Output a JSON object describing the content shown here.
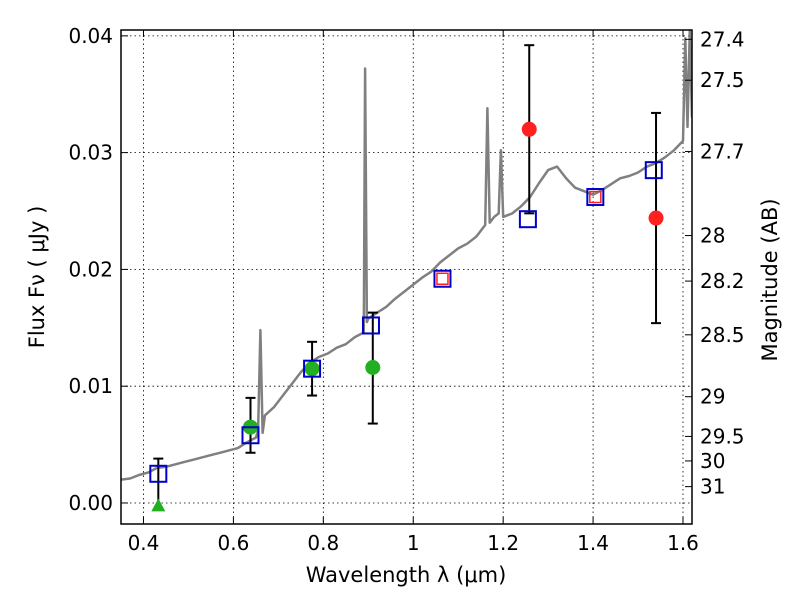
{
  "chart_data": {
    "type": "scatter",
    "title": "",
    "xlabel": "Wavelength  λ (μm)",
    "ylabel": "Flux  Fν  ( μJy )",
    "y2label": "Magnitude (AB)",
    "xlim": [
      0.35,
      1.62
    ],
    "ylim": [
      -0.0018,
      0.0405
    ],
    "grid": true,
    "x_ticks": [
      {
        "value": 0.4,
        "label": "0.4"
      },
      {
        "value": 0.6,
        "label": "0.6"
      },
      {
        "value": 0.8,
        "label": "0.8"
      },
      {
        "value": 1.0,
        "label": "1"
      },
      {
        "value": 1.2,
        "label": "1.2"
      },
      {
        "value": 1.4,
        "label": "1.4"
      },
      {
        "value": 1.6,
        "label": "1.6"
      }
    ],
    "y_ticks": [
      {
        "value": 0.0,
        "label": "0.00"
      },
      {
        "value": 0.01,
        "label": "0.01"
      },
      {
        "value": 0.02,
        "label": "0.02"
      },
      {
        "value": 0.03,
        "label": "0.03"
      },
      {
        "value": 0.04,
        "label": "0.04"
      }
    ],
    "y2_ticks": [
      {
        "flux": 0.0397,
        "label": "27.4"
      },
      {
        "flux": 0.0362,
        "label": "27.5"
      },
      {
        "flux": 0.0301,
        "label": "27.7"
      },
      {
        "flux": 0.0229,
        "label": "28"
      },
      {
        "flux": 0.019,
        "label": "28.2"
      },
      {
        "flux": 0.0144,
        "label": "28.5"
      },
      {
        "flux": 0.0091,
        "label": "29"
      },
      {
        "flux": 0.0057,
        "label": "29.5"
      },
      {
        "flux": 0.0036,
        "label": "30"
      },
      {
        "flux": 0.0014,
        "label": "31"
      }
    ],
    "series": [
      {
        "kind": "model_spectrum",
        "color": "#808080",
        "x": [
          0.35,
          0.37,
          0.39,
          0.41,
          0.43,
          0.45,
          0.47,
          0.49,
          0.51,
          0.53,
          0.55,
          0.57,
          0.59,
          0.61,
          0.63,
          0.65,
          0.655,
          0.66,
          0.665,
          0.67,
          0.69,
          0.71,
          0.73,
          0.75,
          0.77,
          0.79,
          0.81,
          0.83,
          0.85,
          0.87,
          0.89,
          0.893,
          0.897,
          0.9,
          0.92,
          0.94,
          0.96,
          0.98,
          1.0,
          1.02,
          1.04,
          1.06,
          1.08,
          1.1,
          1.12,
          1.14,
          1.16,
          1.165,
          1.17,
          1.18,
          1.19,
          1.195,
          1.2,
          1.22,
          1.24,
          1.26,
          1.28,
          1.3,
          1.32,
          1.34,
          1.36,
          1.38,
          1.4,
          1.42,
          1.44,
          1.46,
          1.48,
          1.5,
          1.52,
          1.54,
          1.56,
          1.58,
          1.6,
          1.605,
          1.61,
          1.615,
          1.62
        ],
        "y": [
          0.002,
          0.0021,
          0.0024,
          0.0026,
          0.003,
          0.0031,
          0.0033,
          0.0035,
          0.0037,
          0.0039,
          0.0041,
          0.0043,
          0.0045,
          0.0047,
          0.0052,
          0.0056,
          0.0062,
          0.0148,
          0.006,
          0.0075,
          0.0082,
          0.0092,
          0.0102,
          0.0112,
          0.012,
          0.0125,
          0.0128,
          0.0133,
          0.0136,
          0.0142,
          0.0146,
          0.0372,
          0.0155,
          0.0158,
          0.0163,
          0.0168,
          0.0175,
          0.0181,
          0.0187,
          0.0193,
          0.0198,
          0.0206,
          0.0212,
          0.0218,
          0.0222,
          0.0228,
          0.0238,
          0.0338,
          0.024,
          0.0245,
          0.0248,
          0.0302,
          0.0245,
          0.0248,
          0.0254,
          0.0262,
          0.0274,
          0.0285,
          0.0288,
          0.0278,
          0.027,
          0.0267,
          0.0264,
          0.0268,
          0.0273,
          0.0278,
          0.028,
          0.0283,
          0.0288,
          0.0291,
          0.0296,
          0.0302,
          0.031,
          0.0398,
          0.0322,
          0.0405,
          0.033
        ]
      },
      {
        "kind": "model_bands",
        "marker": "square",
        "edge_color": "#0000cc",
        "points": [
          {
            "x": 0.433,
            "y": 0.0025
          },
          {
            "x": 0.638,
            "y": 0.0058
          },
          {
            "x": 0.775,
            "y": 0.0115
          },
          {
            "x": 0.906,
            "y": 0.0152
          },
          {
            "x": 1.065,
            "y": 0.0192
          },
          {
            "x": 1.255,
            "y": 0.0243
          },
          {
            "x": 1.405,
            "y": 0.0262
          },
          {
            "x": 1.535,
            "y": 0.0285
          }
        ]
      },
      {
        "kind": "observed_optical",
        "marker": "circle",
        "color": "#22b022",
        "points": [
          {
            "x": 0.638,
            "y": 0.0065,
            "err_low": 0.0022,
            "err_high": 0.0025
          },
          {
            "x": 0.775,
            "y": 0.0115,
            "err_low": 0.0023,
            "err_high": 0.0023
          },
          {
            "x": 0.91,
            "y": 0.0116,
            "err_low": 0.0048,
            "err_high": 0.0047
          }
        ]
      },
      {
        "kind": "upper_limit",
        "marker": "triangle",
        "color": "#22b022",
        "points": [
          {
            "x": 0.433,
            "y": -0.0002,
            "err_high": 0.004
          }
        ]
      },
      {
        "kind": "observed_nir",
        "marker": "circle",
        "color": "#ff2020",
        "points": [
          {
            "x": 1.258,
            "y": 0.032,
            "err_low": 0.0072,
            "err_high": 0.0072
          },
          {
            "x": 1.54,
            "y": 0.0244,
            "err_low": 0.009,
            "err_high": 0.009
          }
        ]
      },
      {
        "kind": "inner_squares",
        "marker": "square",
        "edge_color": "#ff2020",
        "points": [
          {
            "x": 1.065,
            "y": 0.0192
          },
          {
            "x": 1.405,
            "y": 0.0262
          }
        ]
      }
    ]
  }
}
